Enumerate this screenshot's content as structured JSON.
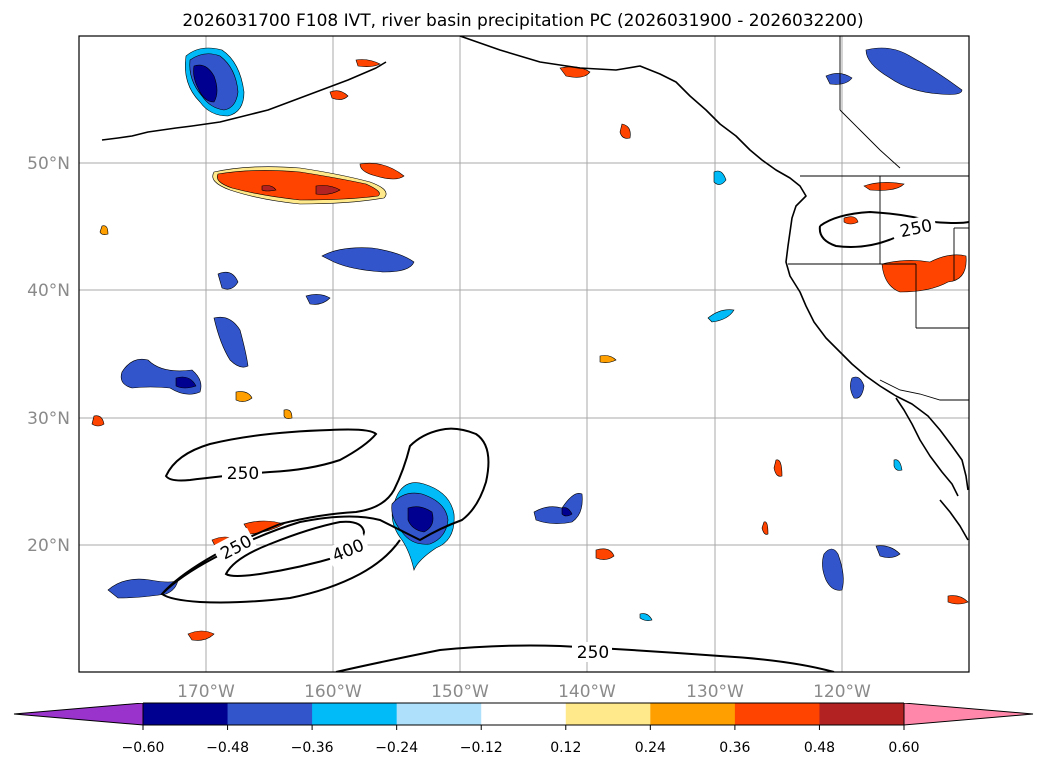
{
  "title": "2026031700 F108 IVT, river basin precipitation PC (2026031900 - 2026032200)",
  "lat_labels": [
    "50°N",
    "40°N",
    "30°N",
    "20°N"
  ],
  "lon_labels": [
    "170°W",
    "160°W",
    "150°W",
    "140°W",
    "130°W",
    "120°W"
  ],
  "colorbar": {
    "ticks": [
      "−0.60",
      "−0.48",
      "−0.36",
      "−0.24",
      "−0.12",
      "0.12",
      "0.24",
      "0.36",
      "0.48",
      "0.60"
    ],
    "colors": [
      "#9933cc",
      "#000090",
      "#3355cc",
      "#00bbf7",
      "#aee0fb",
      "#ffffff",
      "#ffe98a",
      "#ff9f00",
      "#ff4400",
      "#b22222",
      "#ff88aa"
    ]
  },
  "ivt_contour_labels": [
    "250",
    "250",
    "400",
    "250",
    "250"
  ],
  "chart_data": {
    "type": "heatmap",
    "title": "2026031700 F108 IVT, river basin precipitation PC (2026031900 - 2026032200)",
    "region": {
      "lon_range": [
        -180,
        -110
      ],
      "lat_range": [
        10,
        60
      ]
    },
    "filled_field": "river basin precipitation PC",
    "levels": [
      -0.6,
      -0.48,
      -0.36,
      -0.24,
      -0.12,
      0.12,
      0.24,
      0.36,
      0.48,
      0.6
    ],
    "contour_field": "IVT",
    "contour_levels": [
      250,
      400
    ],
    "grid": true
  }
}
